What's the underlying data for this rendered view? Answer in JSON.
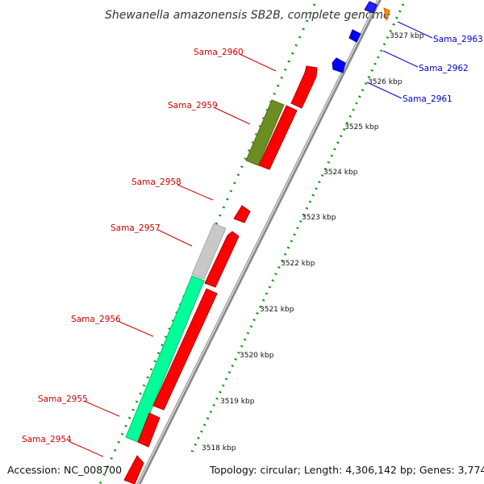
{
  "map": {
    "title": "Shewanella amazonensis SB2B, complete genome",
    "accession": "Accession: NC_008700",
    "topology": "Topology: circular; Length: 4,306,142 bp; Genes: 3,774",
    "kbp_labels": [
      "3527 kbp",
      "3526 kbp",
      "3525 kbp",
      "3524 kbp",
      "3523 kbp",
      "3522 kbp",
      "3521 kbp",
      "3520 kbp",
      "3519 kbp",
      "3518 kbp"
    ],
    "genes_left": [
      "Sama_2960",
      "Sama_2959",
      "Sama_2958",
      "Sama_2957",
      "Sama_2956",
      "Sama_2955",
      "Sama_2954"
    ],
    "genes_right": [
      "Sama_2963",
      "Sama_2962",
      "Sama_2961"
    ]
  },
  "colors": {
    "cds": "#ff0000",
    "olive": "#6b8e23",
    "green": "#00ff99",
    "gray": "#c8c8c8",
    "blue": "#0000ff",
    "orange": "#ff8c00",
    "label_red": "#cc0000",
    "label_blue": "#0000cc"
  }
}
